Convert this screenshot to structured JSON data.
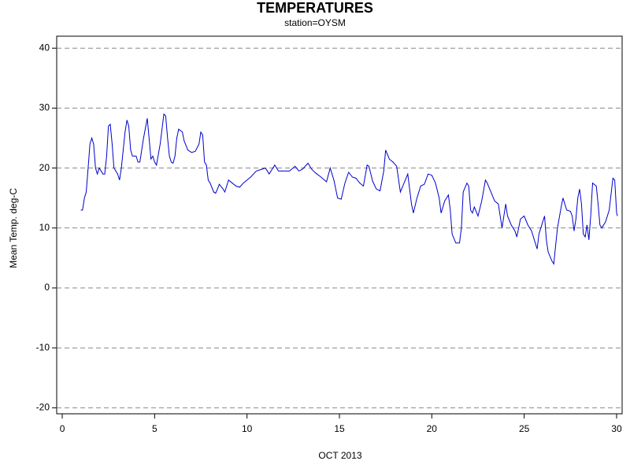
{
  "chart_data": {
    "type": "line",
    "title": "TEMPERATURES",
    "subtitle": "station=OYSM",
    "x_label": "OCT 2013",
    "y_label": "Mean Temp. deg-C",
    "xlim": [
      -0.3,
      30.3
    ],
    "ylim": [
      -21,
      42
    ],
    "xticks": [
      0,
      5,
      10,
      15,
      20,
      25,
      30
    ],
    "yticks": [
      -20,
      -10,
      0,
      10,
      20,
      30,
      40
    ],
    "grid": true,
    "grid_style": "dashed",
    "series": [
      {
        "color": "#0000cc",
        "x": [
          1.0,
          1.1,
          1.2,
          1.3,
          1.4,
          1.5,
          1.6,
          1.7,
          1.8,
          1.9,
          2.0,
          2.2,
          2.3,
          2.4,
          2.5,
          2.6,
          2.7,
          2.8,
          2.9,
          3.0,
          3.1,
          3.2,
          3.4,
          3.5,
          3.6,
          3.7,
          3.8,
          4.0,
          4.1,
          4.2,
          4.4,
          4.6,
          4.7,
          4.8,
          4.9,
          5.0,
          5.1,
          5.3,
          5.5,
          5.6,
          5.7,
          5.8,
          5.9,
          6.0,
          6.1,
          6.2,
          6.3,
          6.5,
          6.6,
          6.8,
          7.0,
          7.2,
          7.4,
          7.5,
          7.6,
          7.7,
          7.8,
          7.9,
          8.0,
          8.2,
          8.3,
          8.4,
          8.5,
          8.7,
          8.8,
          9.0,
          9.2,
          9.4,
          9.6,
          9.8,
          10.0,
          10.2,
          10.5,
          10.8,
          11.0,
          11.2,
          11.4,
          11.5,
          11.7,
          12.0,
          12.3,
          12.6,
          12.8,
          13.0,
          13.3,
          13.5,
          13.7,
          14.0,
          14.3,
          14.5,
          14.7,
          14.9,
          15.1,
          15.3,
          15.5,
          15.7,
          15.9,
          16.1,
          16.3,
          16.5,
          16.6,
          16.8,
          17.0,
          17.2,
          17.4,
          17.5,
          17.7,
          17.9,
          18.1,
          18.3,
          18.5,
          18.7,
          18.9,
          19.0,
          19.2,
          19.4,
          19.6,
          19.8,
          20.0,
          20.2,
          20.4,
          20.5,
          20.7,
          20.9,
          21.0,
          21.1,
          21.3,
          21.5,
          21.6,
          21.7,
          21.9,
          22.0,
          22.1,
          22.2,
          22.3,
          22.5,
          22.7,
          22.9,
          23.0,
          23.2,
          23.4,
          23.6,
          23.8,
          24.0,
          24.1,
          24.3,
          24.5,
          24.6,
          24.8,
          25.0,
          25.2,
          25.4,
          25.6,
          25.7,
          25.8,
          26.0,
          26.1,
          26.2,
          26.3,
          26.5,
          26.6,
          26.7,
          26.8,
          27.0,
          27.1,
          27.3,
          27.5,
          27.6,
          27.7,
          27.8,
          27.9,
          28.0,
          28.1,
          28.2,
          28.3,
          28.4,
          28.5,
          28.6,
          28.7,
          28.9,
          29.0,
          29.1,
          29.2,
          29.4,
          29.6,
          29.8,
          29.9,
          30.0,
          30.05
        ],
        "values": [
          13,
          13,
          15,
          16,
          20,
          24,
          25,
          24,
          20,
          19,
          20,
          19,
          19,
          22,
          27,
          27.3,
          24,
          20,
          19.5,
          19,
          18,
          20,
          26,
          28,
          27,
          23,
          22,
          22,
          21,
          21,
          25,
          28.3,
          25,
          21.5,
          22,
          21,
          20.5,
          24,
          29,
          28.7,
          25,
          22,
          21,
          20.8,
          22,
          25,
          26.5,
          26,
          24.5,
          23,
          22.6,
          22.8,
          24,
          26,
          25.5,
          21,
          20.5,
          18,
          17.5,
          16,
          15.8,
          16.5,
          17.3,
          16.5,
          16,
          18,
          17.5,
          17,
          16.8,
          17.5,
          18,
          18.5,
          19.5,
          19.8,
          20,
          19,
          20,
          20.5,
          19.5,
          19.5,
          19.5,
          20.3,
          19.5,
          19.8,
          20.8,
          19.8,
          19.2,
          18.5,
          17.7,
          20,
          18,
          15,
          14.8,
          17.5,
          19.3,
          18.5,
          18.3,
          17.5,
          17,
          20.5,
          20.3,
          17.8,
          16.5,
          16.2,
          19.5,
          23,
          21.5,
          21,
          20.3,
          16,
          17.5,
          19,
          14,
          12.5,
          15,
          17,
          17.3,
          19,
          18.8,
          17.5,
          15,
          12.5,
          14.5,
          15.5,
          13,
          9,
          7.5,
          7.5,
          10,
          16,
          17.5,
          17,
          13,
          12.5,
          13.5,
          12,
          14.5,
          18,
          17.5,
          16,
          14.5,
          14,
          10,
          14,
          12,
          10.5,
          9.5,
          8.5,
          11.5,
          12,
          10.5,
          9.5,
          7.5,
          6.5,
          9,
          11,
          12,
          8,
          6,
          4.5,
          4,
          7,
          10,
          13.5,
          15,
          13,
          12.8,
          12,
          9.5,
          11.5,
          15,
          16.5,
          14,
          9,
          8.5,
          10.5,
          8,
          12,
          17.5,
          17,
          14,
          10.5,
          10,
          11,
          13,
          18.3,
          18,
          12.5,
          12
        ]
      }
    ]
  }
}
